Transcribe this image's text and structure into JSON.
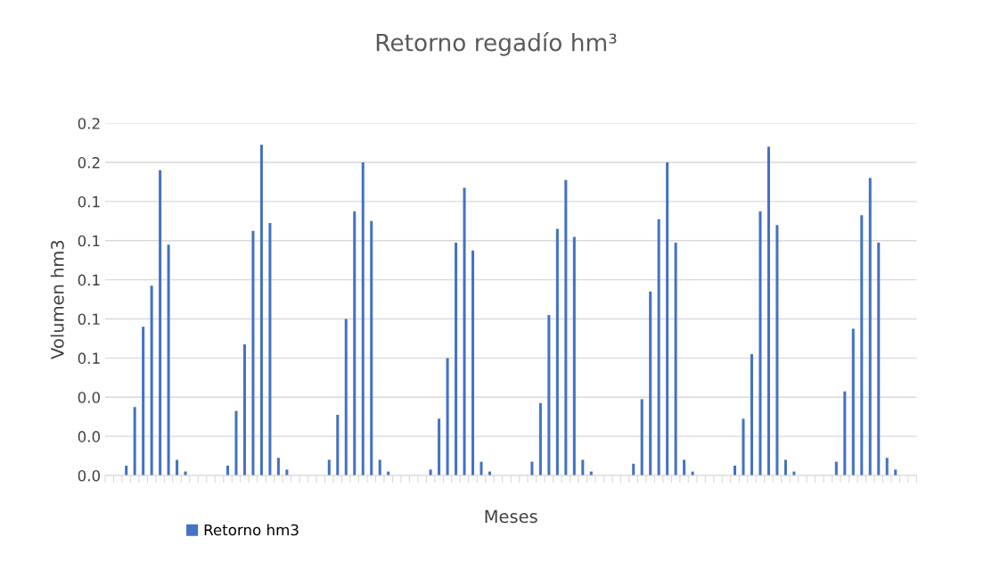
{
  "chart_data": {
    "type": "bar",
    "title": "Retorno regadío hm³",
    "xlabel": "Meses",
    "ylabel": "Volumen hm3",
    "categories": [
      null,
      null,
      null,
      null,
      null,
      null,
      null,
      null,
      null,
      null,
      null,
      null,
      null,
      null,
      null,
      null,
      null,
      null,
      null,
      null,
      null,
      null,
      null,
      null,
      null,
      null,
      null,
      null,
      null,
      null,
      null,
      null,
      null,
      null,
      null,
      null,
      null,
      null,
      null,
      null,
      null,
      null,
      null,
      null,
      null,
      null,
      null,
      null,
      null,
      null,
      null,
      null,
      null,
      null,
      null,
      null,
      null,
      null,
      null,
      null,
      null,
      null,
      null,
      null,
      null,
      null,
      null,
      null,
      null,
      null,
      null,
      null,
      null,
      null,
      null,
      null,
      null,
      null,
      null,
      null,
      null,
      null,
      null,
      null,
      null,
      null,
      null,
      null,
      null,
      null,
      null,
      null,
      null,
      null,
      null,
      null
    ],
    "series": [
      {
        "name": "Retorno hm3",
        "color": "#4472c4",
        "values": [
          0,
          0,
          0.005,
          0.035,
          0.076,
          0.097,
          0.156,
          0.118,
          0.008,
          0.002,
          0,
          0,
          0,
          0,
          0.005,
          0.033,
          0.067,
          0.125,
          0.169,
          0.129,
          0.009,
          0.003,
          0,
          0,
          0,
          0,
          0.008,
          0.031,
          0.08,
          0.135,
          0.16,
          0.13,
          0.008,
          0.002,
          0,
          0,
          0,
          0,
          0.003,
          0.029,
          0.06,
          0.119,
          0.147,
          0.115,
          0.007,
          0.002,
          0,
          0,
          0,
          0,
          0.007,
          0.037,
          0.082,
          0.126,
          0.151,
          0.122,
          0.008,
          0.002,
          0,
          0,
          0,
          0,
          0.006,
          0.039,
          0.094,
          0.131,
          0.16,
          0.119,
          0.008,
          0.002,
          0,
          0,
          0,
          0,
          0.005,
          0.029,
          0.062,
          0.135,
          0.168,
          0.128,
          0.008,
          0.002,
          0,
          0,
          0,
          0,
          0.007,
          0.043,
          0.075,
          0.133,
          0.152,
          0.119,
          0.009,
          0.003,
          0,
          0
        ]
      }
    ],
    "ylim": [
      0,
      0.18
    ],
    "yticks": [
      {
        "value": 0,
        "label": "0.0"
      },
      {
        "value": 0.02,
        "label": "0.0"
      },
      {
        "value": 0.04,
        "label": "0.0"
      },
      {
        "value": 0.06,
        "label": "0.1"
      },
      {
        "value": 0.08,
        "label": "0.1"
      },
      {
        "value": 0.1,
        "label": "0.1"
      },
      {
        "value": 0.12,
        "label": "0.1"
      },
      {
        "value": 0.14,
        "label": "0.1"
      },
      {
        "value": 0.16,
        "label": "0.2"
      },
      {
        "value": 0.18,
        "label": "0.2"
      }
    ],
    "grid": "y",
    "legend": "bottom left"
  }
}
